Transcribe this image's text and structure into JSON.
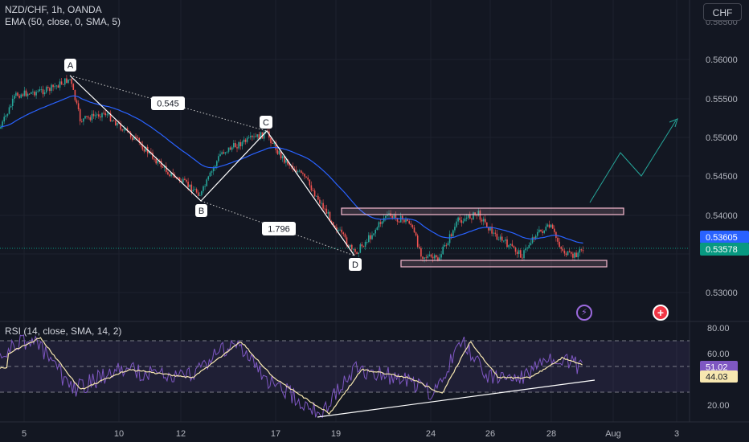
{
  "header": {
    "symbol_line": "NZD/CHF, 1h, OANDA",
    "indicator_line": "EMA (50, close, 0, SMA, 5)",
    "currency_button": "CHF"
  },
  "rsi_panel": {
    "legend": "RSI (14, close, SMA, 14, 2)",
    "axis_labels": [
      "80.00",
      "60.00",
      "40.00",
      "20.00"
    ],
    "rsi_value": "51.02",
    "rsi_ma_value": "44.03"
  },
  "price_axis": {
    "labels": [
      "0.56000",
      "0.55500",
      "0.55000",
      "0.54500",
      "0.54000",
      "0.53000"
    ],
    "partial_top": "0.56500",
    "partial_bottom": "0.53500"
  },
  "price_tags": {
    "ema_value": "0.53605",
    "last_price": "0.53578"
  },
  "time_axis": {
    "labels": [
      "5",
      "10",
      "12",
      "17",
      "19",
      "24",
      "26",
      "28",
      "Aug",
      "3"
    ]
  },
  "harmonic_points": {
    "a": "A",
    "b": "B",
    "c": "C",
    "d": "D",
    "ac_ratio": "0.545",
    "bd_ratio": "1.796"
  },
  "icons": {
    "flash": "⚡",
    "plus": "+"
  },
  "colors": {
    "background": "#131722",
    "candle_up": "#26a69a",
    "candle_down": "#ef5350",
    "ema": "#2962ff",
    "rsi": "#7e57c2",
    "rsi_ma": "#f7e7b0",
    "ema_tag": "#2962ff",
    "price_tag": "#089981",
    "zone_border": "#f8bbd0",
    "projection": "#26a69a"
  },
  "chart_data": {
    "type": "candlestick",
    "instrument": "NZD/CHF",
    "timeframe": "1h",
    "y_range_visible": [
      0.529,
      0.566
    ],
    "harmonic_pattern": {
      "A": {
        "date": "Jul 7",
        "price": 0.5582
      },
      "B": {
        "date": "Jul 13",
        "price": 0.542
      },
      "C": {
        "date": "Jul 17",
        "price": 0.5505
      },
      "D": {
        "date": "Jul 20",
        "price": 0.5355
      }
    },
    "resistance_zone": [
      0.5403,
      0.5409
    ],
    "support_zone": [
      0.5332,
      0.5338
    ],
    "last_price": 0.53578,
    "ema50": 0.53605,
    "rsi": {
      "value": 51.02,
      "ma": 44.03,
      "levels": [
        70,
        50,
        30
      ]
    }
  }
}
